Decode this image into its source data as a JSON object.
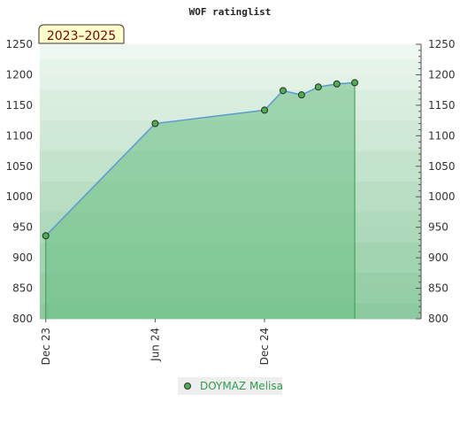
{
  "chart_data": {
    "type": "area",
    "title": "WOF ratinglist",
    "badge": "2023–2025",
    "ylim": [
      800,
      1250
    ],
    "yticks": [
      800,
      850,
      900,
      950,
      1000,
      1050,
      1100,
      1150,
      1200,
      1250
    ],
    "y_tick_labels": [
      "800",
      "850",
      "900",
      "950",
      "1000",
      "1050",
      "1100",
      "1150",
      "1200",
      "1250"
    ],
    "xlim": [
      "2023-11-21",
      "2025-08-20"
    ],
    "x_ticks": [
      {
        "date": "2023-12-01",
        "label": "Dec 23"
      },
      {
        "date": "2024-06-01",
        "label": "Jun 24"
      },
      {
        "date": "2024-12-01",
        "label": "Dec 24"
      }
    ],
    "grid": true,
    "legend_position": "bottom-center",
    "colors": {
      "line": "#5a9bd4",
      "fill": "#6cbf84",
      "marker": "#4caf50",
      "band_light": "#eef7f0",
      "band_dark": "#79c18f",
      "legend_text": "#2e9e4f",
      "badge_bg": "#ffffcc"
    },
    "series": [
      {
        "name": "DOYMAZ Melisa",
        "x": [
          "2023-12-01",
          "2024-06-01",
          "2024-12-01",
          "2025-01-01",
          "2025-02-01",
          "2025-03-01",
          "2025-04-01",
          "2025-05-01"
        ],
        "values": [
          936,
          1120,
          1142,
          1174,
          1167,
          1180,
          1185,
          1187
        ]
      }
    ]
  }
}
